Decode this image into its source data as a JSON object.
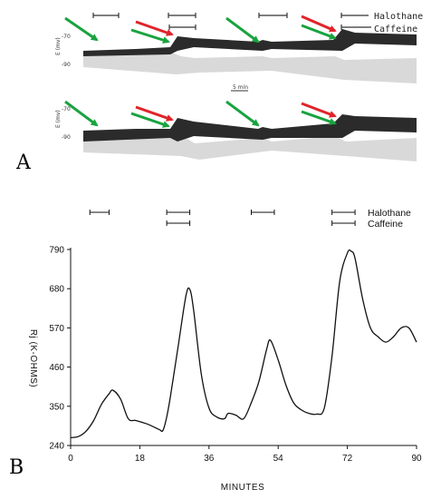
{
  "panel_a": {
    "letter": "A",
    "trace_scale_label": "-70",
    "trace_scale_label_low": "-90",
    "trace_unit_label": "E (mv)",
    "scale_bar_label": "5 min",
    "legend": {
      "halothane": "Halothane",
      "caffeine": "Caffeine"
    },
    "arrow_green_color": "#19a33f",
    "arrow_red_color": "#e0242a"
  },
  "panel_b": {
    "letter": "B",
    "legend": {
      "halothane": "Halothane",
      "caffeine": "Caffeine"
    }
  },
  "chart_data": {
    "type": "line",
    "title": "",
    "xlabel": "MINUTES",
    "ylabel": "Rj (K-OHMS)",
    "xlim": [
      0,
      90
    ],
    "ylim": [
      240,
      790
    ],
    "xticks": [
      0,
      18,
      36,
      54,
      72,
      90
    ],
    "yticks": [
      240,
      350,
      460,
      570,
      680,
      790
    ],
    "grid": false,
    "halothane_exposures": [
      [
        5,
        10
      ],
      [
        25,
        31
      ],
      [
        47,
        53
      ],
      [
        68,
        74
      ]
    ],
    "caffeine_exposures": [
      [
        25,
        31
      ],
      [
        68,
        74
      ]
    ],
    "x": [
      0,
      2,
      4,
      6,
      8,
      10,
      11,
      13,
      15,
      17,
      20,
      23,
      24,
      25,
      26,
      28,
      30,
      31,
      32,
      34,
      36,
      38,
      40,
      41,
      43,
      45,
      47,
      49,
      51,
      52,
      54,
      56,
      58,
      60,
      62,
      64,
      66,
      68,
      70,
      72,
      73,
      74,
      76,
      78,
      80,
      82,
      84,
      86,
      88,
      90
    ],
    "y": [
      262,
      265,
      280,
      310,
      355,
      385,
      395,
      370,
      315,
      310,
      300,
      285,
      282,
      320,
      380,
      520,
      660,
      678,
      620,
      440,
      345,
      320,
      315,
      330,
      325,
      315,
      360,
      420,
      510,
      535,
      480,
      410,
      360,
      340,
      330,
      328,
      345,
      490,
      700,
      780,
      785,
      765,
      650,
      570,
      545,
      530,
      545,
      570,
      570,
      530
    ]
  }
}
